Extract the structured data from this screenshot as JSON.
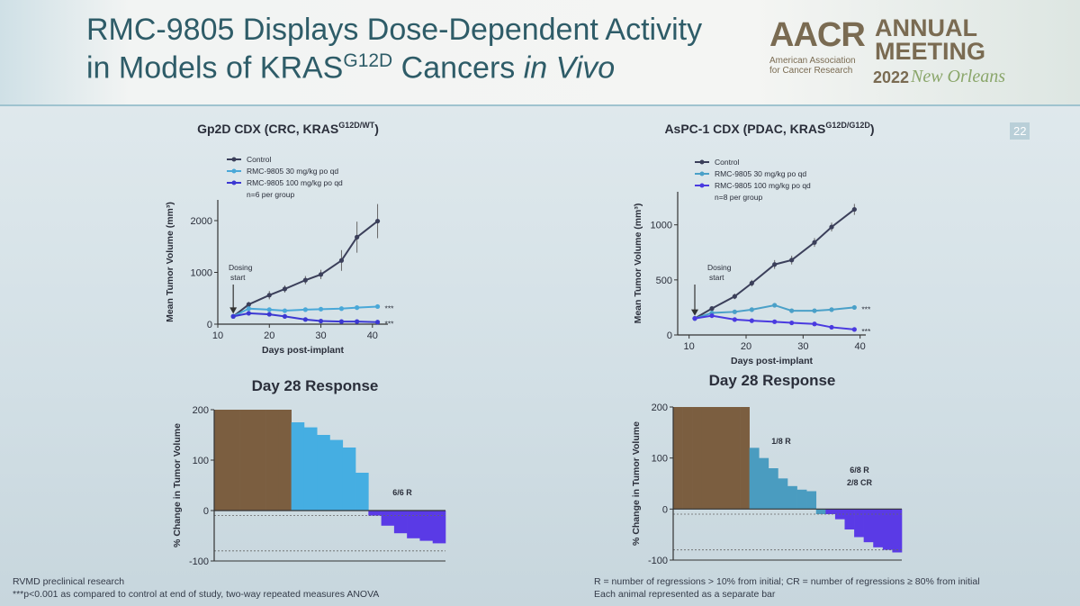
{
  "slide_title": {
    "line1": "RMC-9805 Displays Dose-Dependent Activity",
    "line2": "in Models of KRAS",
    "line2_sup": "G12D",
    "line2_mid": "Cancers",
    "line2_italic": "in Vivo"
  },
  "logo": {
    "acronym": "AACR",
    "full_name": "American Association for Cancer Research",
    "meeting": "ANNUAL MEETING",
    "year": "2022",
    "city": "New Orleans"
  },
  "page_number": "22",
  "footnotes_left": [
    "RVMD preclinical research",
    "***p<0.001 as compared to control at end of study, two-way repeated measures ANOVA"
  ],
  "footnotes_right": [
    "R = number of regressions > 10% from initial; CR = number of regressions ≥ 80% from initial",
    "Each animal represented as a separate bar"
  ],
  "chart_data": [
    {
      "type": "line",
      "title": "Gp2D CDX  (CRC, KRAS",
      "title_sup": "G12D/WT",
      "title_end": ")",
      "x_label": "Days post-implant",
      "y_label": "Mean Tumor Volume (mm³)",
      "x": [
        13,
        16,
        20,
        23,
        27,
        30,
        34,
        37,
        41
      ],
      "series": [
        {
          "name": "Control",
          "color": "#3b3f5a",
          "values": [
            150,
            380,
            560,
            680,
            850,
            960,
            1230,
            1680,
            1990
          ],
          "errors": [
            20,
            50,
            80,
            70,
            80,
            90,
            200,
            300,
            330
          ]
        },
        {
          "name": "RMC-9805 30 mg/kg po qd",
          "color": "#4aa8d8",
          "values": [
            150,
            300,
            280,
            260,
            280,
            290,
            300,
            320,
            340
          ],
          "errors": [
            20,
            30,
            30,
            30,
            30,
            30,
            30,
            30,
            30
          ]
        },
        {
          "name": "RMC-9805 100 mg/kg po qd",
          "color": "#3c38d2",
          "values": [
            150,
            210,
            190,
            150,
            90,
            60,
            50,
            50,
            40
          ],
          "errors": [
            20,
            25,
            25,
            20,
            15,
            10,
            10,
            10,
            10
          ]
        }
      ],
      "legend_note": "n=6 per group",
      "annotation": [
        "Dosing",
        "start"
      ],
      "significance": [
        "***",
        "***"
      ],
      "xlim": [
        10,
        43
      ],
      "xticks": [
        10,
        20,
        30,
        40
      ],
      "ylim": [
        0,
        2400
      ],
      "yticks": [
        0,
        1000,
        2000
      ]
    },
    {
      "type": "line",
      "title": "AsPC-1 CDX  (PDAC, KRAS",
      "title_sup": "G12D/G12D",
      "title_end": ")",
      "x_label": "Days post-implant",
      "y_label": "Mean Tumor Volume (mm³)",
      "x": [
        11,
        14,
        18,
        21,
        25,
        28,
        32,
        35,
        39
      ],
      "series": [
        {
          "name": "Control",
          "color": "#3b3f5a",
          "values": [
            150,
            240,
            350,
            470,
            640,
            680,
            840,
            980,
            1140
          ],
          "errors": [
            15,
            20,
            25,
            30,
            40,
            40,
            40,
            40,
            50
          ]
        },
        {
          "name": "RMC-9805 30 mg/kg po qd",
          "color": "#4aa0c8",
          "values": [
            150,
            200,
            210,
            230,
            270,
            220,
            220,
            230,
            250
          ],
          "errors": [
            15,
            15,
            15,
            15,
            15,
            15,
            15,
            15,
            15
          ]
        },
        {
          "name": "RMC-9805 100 mg/kg po qd",
          "color": "#4a3ae0",
          "values": [
            150,
            175,
            140,
            130,
            120,
            110,
            100,
            70,
            50
          ],
          "errors": [
            15,
            15,
            10,
            10,
            10,
            10,
            10,
            10,
            10
          ]
        }
      ],
      "legend_note": "n=8 per group",
      "annotation": [
        "Dosing",
        "start"
      ],
      "significance": [
        "***",
        "***"
      ],
      "xlim": [
        8,
        41
      ],
      "xticks": [
        10,
        20,
        30,
        40
      ],
      "ylim": [
        0,
        1300
      ],
      "yticks": [
        0,
        500,
        1000
      ]
    },
    {
      "type": "bar",
      "title": "Day 28 Response",
      "y_label": "% Change in Tumor Volume",
      "series": [
        {
          "color": "#7b5e40",
          "values": [
            200,
            200,
            200,
            200,
            200,
            200
          ]
        },
        {
          "color": "#45aee2",
          "values": [
            175,
            165,
            150,
            140,
            125,
            75
          ]
        },
        {
          "color": "#5a3ae6",
          "values": [
            -10,
            -30,
            -45,
            -55,
            -60,
            -65
          ]
        }
      ],
      "reference_lines": [
        -10,
        -80
      ],
      "annotations": [
        "6/6 R"
      ],
      "ylim": [
        -100,
        200
      ],
      "yticks": [
        -100,
        0,
        100,
        200
      ]
    },
    {
      "type": "bar",
      "title": "Day 28 Response",
      "y_label": "% Change in Tumor Volume",
      "series": [
        {
          "color": "#7b5e40",
          "values": [
            200,
            200,
            200,
            200,
            200,
            200,
            200,
            200
          ]
        },
        {
          "color": "#4a9cc0",
          "values": [
            120,
            100,
            80,
            60,
            45,
            38,
            35,
            -10
          ]
        },
        {
          "color": "#5a3ae6",
          "values": [
            -10,
            -20,
            -40,
            -55,
            -65,
            -75,
            -80,
            -85
          ]
        }
      ],
      "reference_lines": [
        -10,
        -80
      ],
      "annotations": [
        "1/8 R",
        "6/8 R",
        "2/8 CR"
      ],
      "ylim": [
        -100,
        200
      ],
      "yticks": [
        -100,
        0,
        100,
        200
      ]
    }
  ]
}
